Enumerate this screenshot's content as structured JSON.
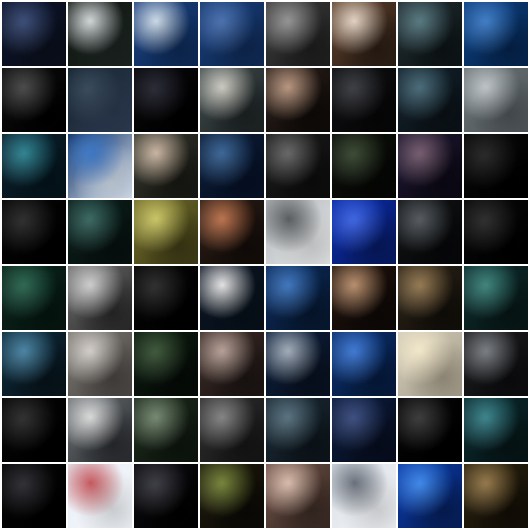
{
  "grid": {
    "rows": 8,
    "cols": 8,
    "tiles": [
      {
        "colors": [
          "#0b1227",
          "#2a3d6b",
          "#0a0f1c"
        ]
      },
      {
        "colors": [
          "#0e1410",
          "#cfd4d6",
          "#1b2420"
        ]
      },
      {
        "colors": [
          "#1b3f7c",
          "#c9d8e6",
          "#0d2a57"
        ]
      },
      {
        "colors": [
          "#173a73",
          "#3b65a8",
          "#0f2a55"
        ]
      },
      {
        "colors": [
          "#3a3a3a",
          "#8c8c8c",
          "#1e1e1e"
        ]
      },
      {
        "colors": [
          "#5b3e2b",
          "#e2d0bf",
          "#2a1d14"
        ]
      },
      {
        "colors": [
          "#1f2b2f",
          "#4a6e77",
          "#0d1416"
        ]
      },
      {
        "colors": [
          "#0c3f7e",
          "#2f72c1",
          "#05244d"
        ]
      },
      {
        "colors": [
          "#0c0c0c",
          "#3a3a3a",
          "#000000"
        ]
      },
      {
        "colors": [
          "#13212d",
          "#25384a",
          "#2d3b52"
        ]
      },
      {
        "colors": [
          "#07070a",
          "#161623",
          "#000000"
        ]
      },
      {
        "colors": [
          "#3f4a4b",
          "#c9c7bd",
          "#1d2324"
        ]
      },
      {
        "colors": [
          "#2a1f1a",
          "#b48e76",
          "#0e0a08"
        ]
      },
      {
        "colors": [
          "#0e0e10",
          "#2b2d33",
          "#060607"
        ]
      },
      {
        "colors": [
          "#12202a",
          "#3a5f6e",
          "#0a1116"
        ]
      },
      {
        "colors": [
          "#6a7275",
          "#b9c0c3",
          "#4f5659"
        ]
      },
      {
        "colors": [
          "#0b1e2a",
          "#1f7a8a",
          "#04131b"
        ]
      },
      {
        "colors": [
          "#0d2b5c",
          "#2b6cc2",
          "#d7e3f2"
        ]
      },
      {
        "colors": [
          "#33352c",
          "#c6b09b",
          "#171812"
        ]
      },
      {
        "colors": [
          "#0b1a33",
          "#2b5a8f",
          "#061024"
        ]
      },
      {
        "colors": [
          "#1a1a1a",
          "#5a5a5a",
          "#0c0c0c"
        ]
      },
      {
        "colors": [
          "#0b0e09",
          "#2a3a22",
          "#050604"
        ]
      },
      {
        "colors": [
          "#1d1730",
          "#6a4f63",
          "#0b0814"
        ]
      },
      {
        "colors": [
          "#080808",
          "#141414",
          "#000000"
        ]
      },
      {
        "colors": [
          "#050505",
          "#1b1b1b",
          "#000000"
        ]
      },
      {
        "colors": [
          "#0b1d1a",
          "#2a5c55",
          "#06100e"
        ]
      },
      {
        "colors": [
          "#6f6b2a",
          "#c7c25a",
          "#3e3b16"
        ]
      },
      {
        "colors": [
          "#2a1b14",
          "#b7683f",
          "#120c09"
        ]
      },
      {
        "colors": [
          "#b0b5b8",
          "#4b4f52",
          "#e5e7e8"
        ]
      },
      {
        "colors": [
          "#0a2aa6",
          "#2d58e0",
          "#071a62"
        ]
      },
      {
        "colors": [
          "#101214",
          "#464c52",
          "#060708"
        ]
      },
      {
        "colors": [
          "#080808",
          "#1a1a1a",
          "#000000"
        ]
      },
      {
        "colors": [
          "#0a2319",
          "#1c5b44",
          "#051510"
        ]
      },
      {
        "colors": [
          "#6b6b6b",
          "#cbcbcb",
          "#2a2a2a"
        ]
      },
      {
        "colors": [
          "#050505",
          "#1b1b1b",
          "#000000"
        ]
      },
      {
        "colors": [
          "#0a1220",
          "#e2e2e2",
          "#061019"
        ]
      },
      {
        "colors": [
          "#0c2a5a",
          "#2f6bb8",
          "#06172f"
        ]
      },
      {
        "colors": [
          "#1f120c",
          "#b38661",
          "#0d0806"
        ]
      },
      {
        "colors": [
          "#2b2418",
          "#8d6f45",
          "#110e09"
        ]
      },
      {
        "colors": [
          "#0e2b2b",
          "#2e7a72",
          "#071616"
        ]
      },
      {
        "colors": [
          "#0d2a3a",
          "#3c7a9c",
          "#07131a"
        ]
      },
      {
        "colors": [
          "#7a7670",
          "#d0cbc5",
          "#4a4744"
        ]
      },
      {
        "colors": [
          "#0b1a0f",
          "#2e4a2a",
          "#050a06"
        ]
      },
      {
        "colors": [
          "#3a2a26",
          "#b29a90",
          "#1b1412"
        ]
      },
      {
        "colors": [
          "#0b1e3a",
          "#9aa7b4",
          "#08101f"
        ]
      },
      {
        "colors": [
          "#0a2e6a",
          "#2f6ed0",
          "#051a3d"
        ]
      },
      {
        "colors": [
          "#d2cbb8",
          "#f2e7c6",
          "#a8a08d"
        ]
      },
      {
        "colors": [
          "#1a1b1e",
          "#6f7378",
          "#0c0c0e"
        ]
      },
      {
        "colors": [
          "#050505",
          "#1d1d1d",
          "#000000"
        ]
      },
      {
        "colors": [
          "#6a6f73",
          "#d8d8d8",
          "#2a2d30"
        ]
      },
      {
        "colors": [
          "#1c2b1c",
          "#6a7f65",
          "#0d140d"
        ]
      },
      {
        "colors": [
          "#2d2d2d",
          "#7a7a7a",
          "#151515"
        ]
      },
      {
        "colors": [
          "#1b2a35",
          "#4b6775",
          "#0c141a"
        ]
      },
      {
        "colors": [
          "#0b1a3a",
          "#2b3f75",
          "#060d1e"
        ]
      },
      {
        "colors": [
          "#050505",
          "#2a2a2a",
          "#000000"
        ]
      },
      {
        "colors": [
          "#0a2a2e",
          "#2b7a83",
          "#061416"
        ]
      },
      {
        "colors": [
          "#050506",
          "#1c1c22",
          "#000000"
        ]
      },
      {
        "colors": [
          "#e8eef7",
          "#c14b50",
          "#f4f7fb"
        ]
      },
      {
        "colors": [
          "#0b0b10",
          "#2b2b33",
          "#000000"
        ]
      },
      {
        "colors": [
          "#1d1a0c",
          "#6b7a2a",
          "#0b0905"
        ]
      },
      {
        "colors": [
          "#6a4f45",
          "#d7b7a6",
          "#3a2a24"
        ]
      },
      {
        "colors": [
          "#d9dfe6",
          "#5d6470",
          "#f2f4f7"
        ]
      },
      {
        "colors": [
          "#0b3aa6",
          "#2e7ee8",
          "#061f5c"
        ]
      },
      {
        "colors": [
          "#2a220f",
          "#8c6d3b",
          "#120e06"
        ]
      }
    ]
  }
}
